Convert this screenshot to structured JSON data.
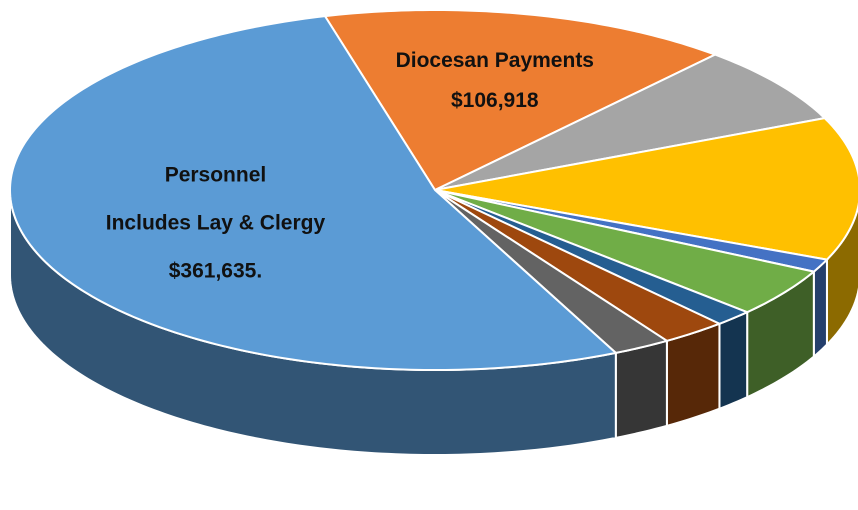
{
  "chart_data": {
    "type": "pie",
    "categories": [
      "Diocesan Payments",
      null,
      null,
      null,
      null,
      null,
      null,
      null,
      "Personnel"
    ],
    "category_notes": [
      null,
      null,
      null,
      null,
      null,
      null,
      null,
      null,
      "Includes Lay & Clergy"
    ],
    "values": [
      106918,
      48000,
      88000,
      8000,
      30000,
      10000,
      17000,
      15000,
      361635
    ],
    "value_labels": [
      "$106,918",
      null,
      null,
      null,
      null,
      null,
      null,
      null,
      "$361,635."
    ],
    "colors": [
      "#ed7d31",
      "#a5a5a5",
      "#ffc000",
      "#4472c4",
      "#70ad47",
      "#255e91",
      "#9e480e",
      "#636363",
      "#5b9bd5"
    ]
  }
}
